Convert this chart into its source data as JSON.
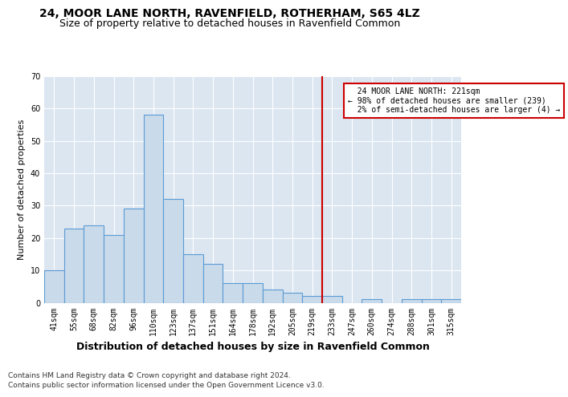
{
  "title1": "24, MOOR LANE NORTH, RAVENFIELD, ROTHERHAM, S65 4LZ",
  "title2": "Size of property relative to detached houses in Ravenfield Common",
  "xlabel": "Distribution of detached houses by size in Ravenfield Common",
  "ylabel": "Number of detached properties",
  "footnote1": "Contains HM Land Registry data © Crown copyright and database right 2024.",
  "footnote2": "Contains public sector information licensed under the Open Government Licence v3.0.",
  "bin_labels": [
    "41sqm",
    "55sqm",
    "68sqm",
    "82sqm",
    "96sqm",
    "110sqm",
    "123sqm",
    "137sqm",
    "151sqm",
    "164sqm",
    "178sqm",
    "192sqm",
    "205sqm",
    "219sqm",
    "233sqm",
    "247sqm",
    "260sqm",
    "274sqm",
    "288sqm",
    "301sqm",
    "315sqm"
  ],
  "bar_heights": [
    10,
    23,
    24,
    21,
    29,
    58,
    32,
    15,
    12,
    6,
    6,
    4,
    3,
    2,
    2,
    0,
    1,
    0,
    1,
    1,
    1
  ],
  "bar_color": "#c9daea",
  "bar_edge_color": "#5b9bd5",
  "bar_edge_width": 0.8,
  "vline_x": 13.5,
  "vline_color": "#cc0000",
  "vline_linewidth": 1.5,
  "annotation_box_text": "  24 MOOR LANE NORTH: 221sqm  \n← 98% of detached houses are smaller (239)\n  2% of semi-detached houses are larger (4) →",
  "annotation_box_color": "#cc0000",
  "annotation_box_facecolor": "white",
  "ylim": [
    0,
    70
  ],
  "yticks": [
    0,
    10,
    20,
    30,
    40,
    50,
    60,
    70
  ],
  "background_color": "#dce6f1",
  "grid_color": "white",
  "title1_fontsize": 10,
  "title2_fontsize": 9,
  "xlabel_fontsize": 9,
  "ylabel_fontsize": 8,
  "tick_fontsize": 7,
  "annotation_fontsize": 7,
  "footnote_fontsize": 6.5
}
